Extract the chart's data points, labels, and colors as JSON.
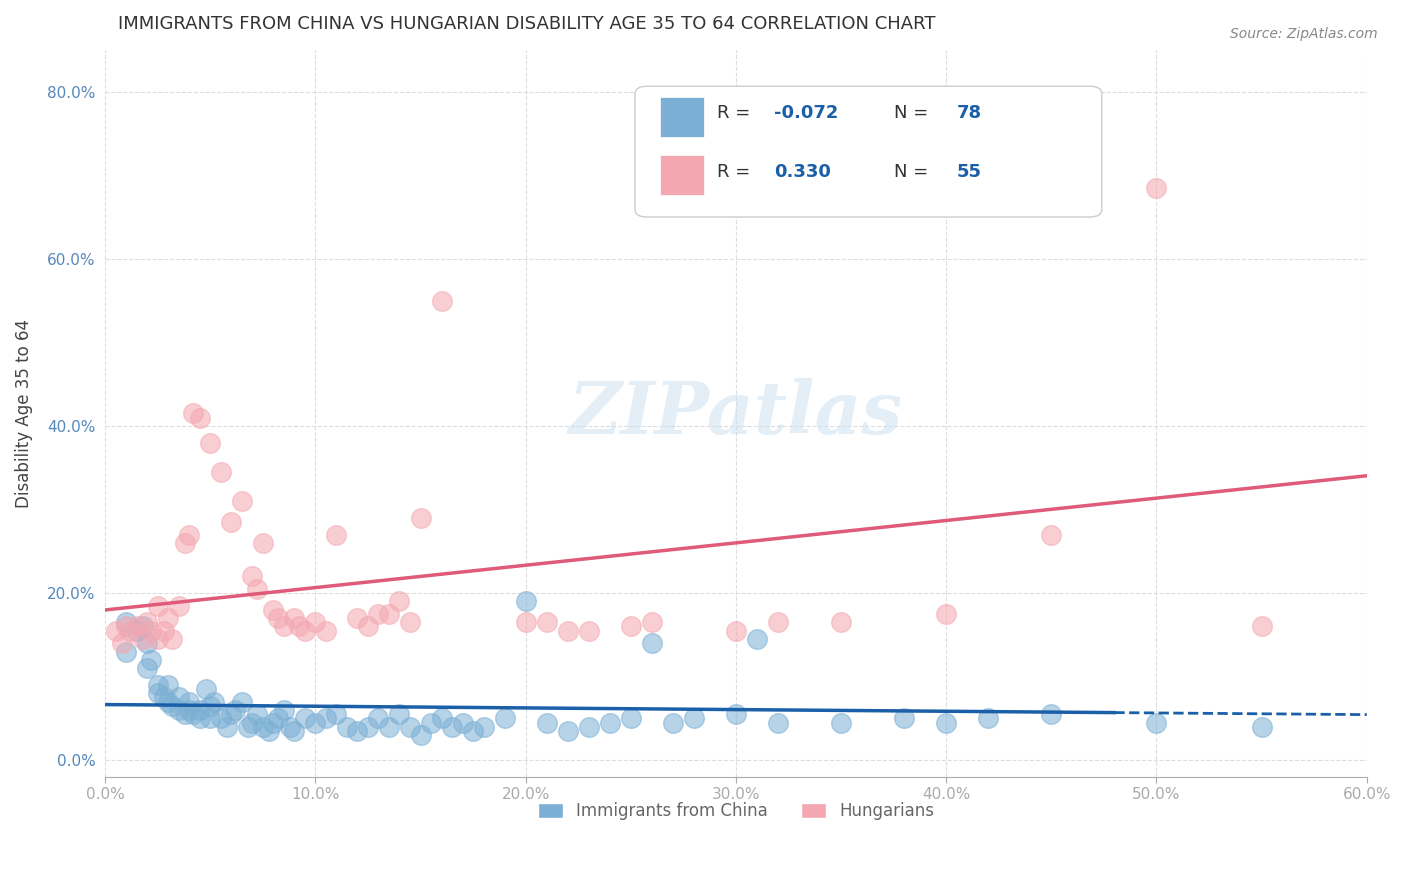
{
  "title": "IMMIGRANTS FROM CHINA VS HUNGARIAN DISABILITY AGE 35 TO 64 CORRELATION CHART",
  "source": "Source: ZipAtlas.com",
  "xlabel": "",
  "ylabel": "Disability Age 35 to 64",
  "xlim": [
    0.0,
    0.6
  ],
  "ylim": [
    -0.02,
    0.85
  ],
  "xticks": [
    0.0,
    0.1,
    0.2,
    0.3,
    0.4,
    0.5,
    0.6
  ],
  "xticklabels": [
    "0.0%",
    "10.0%",
    "20.0%",
    "30.0%",
    "40.0%",
    "50.0%",
    "60.0%"
  ],
  "yticks": [
    0.0,
    0.2,
    0.4,
    0.6,
    0.8
  ],
  "yticklabels": [
    "0.0%",
    "20.0%",
    "40.0%",
    "60.0%",
    "80.0%"
  ],
  "blue_color": "#7bafd4",
  "pink_color": "#f4a7b0",
  "blue_line_color": "#1a5fa8",
  "pink_line_color": "#e05a7a",
  "R_blue": -0.072,
  "N_blue": 78,
  "R_pink": 0.33,
  "N_pink": 55,
  "watermark": "ZIPatlas",
  "legend_label_blue": "Immigrants from China",
  "legend_label_pink": "Hungarians",
  "blue_scatter": [
    [
      0.01,
      0.165
    ],
    [
      0.01,
      0.13
    ],
    [
      0.015,
      0.155
    ],
    [
      0.018,
      0.16
    ],
    [
      0.02,
      0.14
    ],
    [
      0.02,
      0.11
    ],
    [
      0.022,
      0.12
    ],
    [
      0.025,
      0.08
    ],
    [
      0.025,
      0.09
    ],
    [
      0.028,
      0.075
    ],
    [
      0.03,
      0.07
    ],
    [
      0.03,
      0.09
    ],
    [
      0.032,
      0.065
    ],
    [
      0.035,
      0.06
    ],
    [
      0.035,
      0.075
    ],
    [
      0.038,
      0.055
    ],
    [
      0.04,
      0.06
    ],
    [
      0.04,
      0.07
    ],
    [
      0.042,
      0.055
    ],
    [
      0.045,
      0.05
    ],
    [
      0.045,
      0.06
    ],
    [
      0.048,
      0.085
    ],
    [
      0.05,
      0.05
    ],
    [
      0.05,
      0.065
    ],
    [
      0.052,
      0.07
    ],
    [
      0.055,
      0.05
    ],
    [
      0.058,
      0.04
    ],
    [
      0.06,
      0.055
    ],
    [
      0.062,
      0.06
    ],
    [
      0.065,
      0.07
    ],
    [
      0.068,
      0.04
    ],
    [
      0.07,
      0.045
    ],
    [
      0.072,
      0.055
    ],
    [
      0.075,
      0.04
    ],
    [
      0.078,
      0.035
    ],
    [
      0.08,
      0.045
    ],
    [
      0.082,
      0.05
    ],
    [
      0.085,
      0.06
    ],
    [
      0.088,
      0.04
    ],
    [
      0.09,
      0.035
    ],
    [
      0.095,
      0.05
    ],
    [
      0.1,
      0.045
    ],
    [
      0.105,
      0.05
    ],
    [
      0.11,
      0.055
    ],
    [
      0.115,
      0.04
    ],
    [
      0.12,
      0.035
    ],
    [
      0.125,
      0.04
    ],
    [
      0.13,
      0.05
    ],
    [
      0.135,
      0.04
    ],
    [
      0.14,
      0.055
    ],
    [
      0.145,
      0.04
    ],
    [
      0.15,
      0.03
    ],
    [
      0.155,
      0.045
    ],
    [
      0.16,
      0.05
    ],
    [
      0.165,
      0.04
    ],
    [
      0.17,
      0.045
    ],
    [
      0.175,
      0.035
    ],
    [
      0.18,
      0.04
    ],
    [
      0.19,
      0.05
    ],
    [
      0.2,
      0.19
    ],
    [
      0.21,
      0.045
    ],
    [
      0.22,
      0.035
    ],
    [
      0.23,
      0.04
    ],
    [
      0.24,
      0.045
    ],
    [
      0.25,
      0.05
    ],
    [
      0.26,
      0.14
    ],
    [
      0.27,
      0.045
    ],
    [
      0.28,
      0.05
    ],
    [
      0.3,
      0.055
    ],
    [
      0.31,
      0.145
    ],
    [
      0.32,
      0.045
    ],
    [
      0.35,
      0.045
    ],
    [
      0.38,
      0.05
    ],
    [
      0.4,
      0.045
    ],
    [
      0.42,
      0.05
    ],
    [
      0.45,
      0.055
    ],
    [
      0.5,
      0.045
    ],
    [
      0.55,
      0.04
    ]
  ],
  "pink_scatter": [
    [
      0.005,
      0.155
    ],
    [
      0.008,
      0.14
    ],
    [
      0.01,
      0.16
    ],
    [
      0.012,
      0.155
    ],
    [
      0.015,
      0.16
    ],
    [
      0.018,
      0.145
    ],
    [
      0.02,
      0.165
    ],
    [
      0.022,
      0.155
    ],
    [
      0.025,
      0.145
    ],
    [
      0.025,
      0.185
    ],
    [
      0.028,
      0.155
    ],
    [
      0.03,
      0.17
    ],
    [
      0.032,
      0.145
    ],
    [
      0.035,
      0.185
    ],
    [
      0.038,
      0.26
    ],
    [
      0.04,
      0.27
    ],
    [
      0.042,
      0.415
    ],
    [
      0.045,
      0.41
    ],
    [
      0.05,
      0.38
    ],
    [
      0.055,
      0.345
    ],
    [
      0.06,
      0.285
    ],
    [
      0.065,
      0.31
    ],
    [
      0.07,
      0.22
    ],
    [
      0.072,
      0.205
    ],
    [
      0.075,
      0.26
    ],
    [
      0.08,
      0.18
    ],
    [
      0.082,
      0.17
    ],
    [
      0.085,
      0.16
    ],
    [
      0.09,
      0.17
    ],
    [
      0.092,
      0.16
    ],
    [
      0.095,
      0.155
    ],
    [
      0.1,
      0.165
    ],
    [
      0.105,
      0.155
    ],
    [
      0.11,
      0.27
    ],
    [
      0.12,
      0.17
    ],
    [
      0.125,
      0.16
    ],
    [
      0.13,
      0.175
    ],
    [
      0.135,
      0.175
    ],
    [
      0.14,
      0.19
    ],
    [
      0.145,
      0.165
    ],
    [
      0.15,
      0.29
    ],
    [
      0.16,
      0.55
    ],
    [
      0.2,
      0.165
    ],
    [
      0.21,
      0.165
    ],
    [
      0.22,
      0.155
    ],
    [
      0.23,
      0.155
    ],
    [
      0.25,
      0.16
    ],
    [
      0.26,
      0.165
    ],
    [
      0.3,
      0.155
    ],
    [
      0.32,
      0.165
    ],
    [
      0.35,
      0.165
    ],
    [
      0.4,
      0.175
    ],
    [
      0.45,
      0.27
    ],
    [
      0.5,
      0.685
    ],
    [
      0.55,
      0.16
    ]
  ]
}
